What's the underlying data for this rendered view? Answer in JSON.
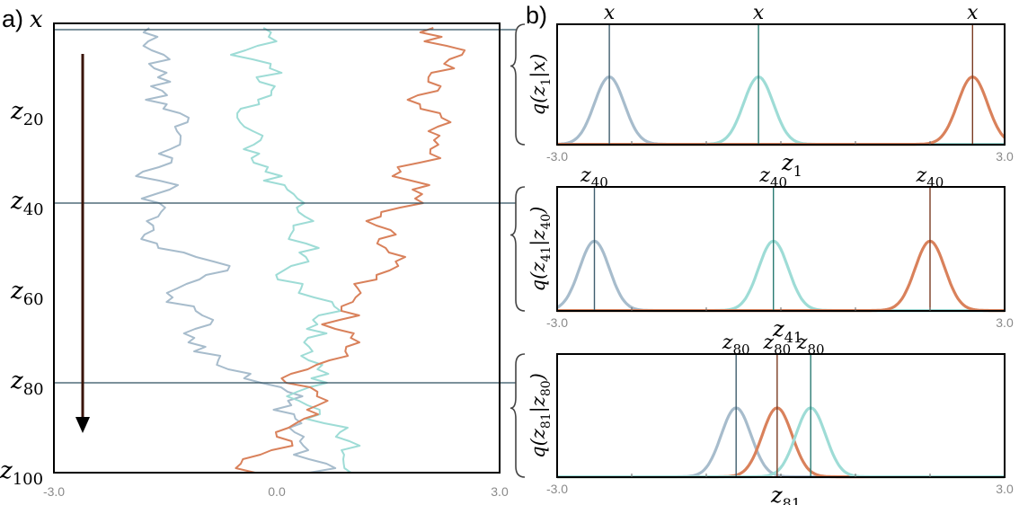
{
  "colors": {
    "blue": "#a7bccc",
    "teal": "#9edcd6",
    "orange": "#d9815b",
    "blue_dark": "#3f5e6e",
    "teal_dark": "#2a7b73",
    "orange_dark": "#7a3b22"
  },
  "panel_a": {
    "label": "a)",
    "top_label": "x",
    "ytick_labels": [
      {
        "v": 20,
        "t": "z",
        "s": "20"
      },
      {
        "v": 40,
        "t": "z",
        "s": "40"
      },
      {
        "v": 60,
        "t": "z",
        "s": "60"
      },
      {
        "v": 80,
        "t": "z",
        "s": "80"
      },
      {
        "v": 100,
        "t": "z",
        "s": "100"
      }
    ],
    "xtick_labels": [
      {
        "v": -3,
        "t": "-3.0"
      },
      {
        "v": 0,
        "t": "0.0"
      },
      {
        "v": 3,
        "t": "3.0"
      }
    ],
    "hlines": [
      1,
      40,
      80
    ]
  },
  "panel_b": {
    "label": "b)",
    "xtick_labels": [
      {
        "v": -3,
        "t": "-3.0"
      },
      {
        "v": 3,
        "t": "3.0"
      }
    ],
    "rows": [
      {
        "ylabel": {
          "pre": "q(z",
          "sub": "1",
          "mid": "|",
          "var": "x",
          "varsub": "",
          "post": ")"
        },
        "xlabel": {
          "t": "z",
          "s": "1"
        },
        "markers": [
          {
            "t": "x",
            "s": "",
            "color": "blue_dark"
          },
          {
            "t": "x",
            "s": "",
            "color": "teal_dark"
          },
          {
            "t": "x",
            "s": "",
            "color": "orange_dark"
          }
        ]
      },
      {
        "ylabel": {
          "pre": "q(z",
          "sub": "41",
          "mid": "|",
          "var": "z",
          "varsub": "40",
          "post": ")"
        },
        "xlabel": {
          "t": "z",
          "s": "41"
        },
        "markers": [
          {
            "t": "z",
            "s": "40",
            "color": "blue_dark"
          },
          {
            "t": "z",
            "s": "40",
            "color": "teal_dark"
          },
          {
            "t": "z",
            "s": "40",
            "color": "orange_dark"
          }
        ]
      },
      {
        "ylabel": {
          "pre": "q(z",
          "sub": "81",
          "mid": "|",
          "var": "z",
          "varsub": "80",
          "post": ")"
        },
        "xlabel": {
          "t": "z",
          "s": "81"
        },
        "markers": [
          {
            "t": "z",
            "s": "80",
            "color": "blue_dark"
          },
          {
            "t": "z",
            "s": "80",
            "color": "orange_dark"
          },
          {
            "t": "z",
            "s": "80",
            "color": "teal_dark"
          }
        ]
      }
    ]
  }
}
